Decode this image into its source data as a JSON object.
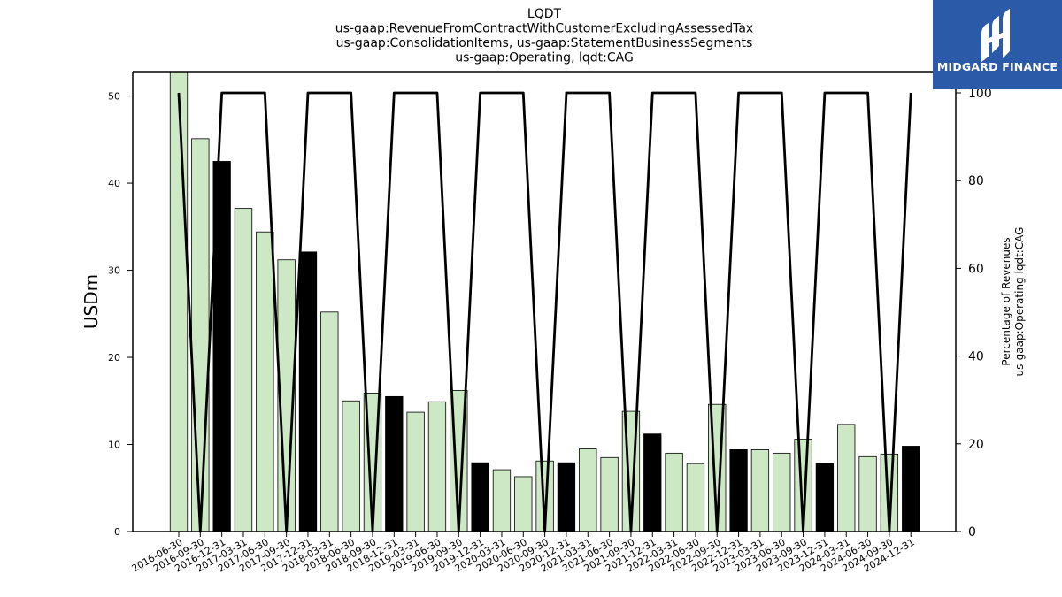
{
  "chart_data": {
    "type": "bar",
    "title_lines": [
      "LQDT",
      "us-gaap:RevenueFromContractWithCustomerExcludingAssessedTax",
      "us-gaap:ConsolidationItems, us-gaap:StatementBusinessSegments",
      "us-gaap:Operating, lqdt:CAG"
    ],
    "ylabel": "USDm",
    "ylabel_right_lines": [
      "Percentage of Revenues",
      "us-gaap:Operating lqdt:CAG"
    ],
    "ylim": [
      0,
      52.8
    ],
    "ylim_right": [
      0,
      100
    ],
    "yticks": [
      0,
      10,
      20,
      30,
      40,
      50
    ],
    "yticks_right": [
      0,
      20,
      40,
      60,
      80,
      100
    ],
    "categories": [
      "2016-06-30",
      "2016-09-30",
      "2016-12-31",
      "2017-03-31",
      "2017-06-30",
      "2017-09-30",
      "2017-12-31",
      "2018-03-31",
      "2018-06-30",
      "2018-09-30",
      "2018-12-31",
      "2019-03-31",
      "2019-06-30",
      "2019-09-30",
      "2019-12-31",
      "2020-03-31",
      "2020-06-30",
      "2020-09-30",
      "2020-12-31",
      "2021-03-31",
      "2021-06-30",
      "2021-09-30",
      "2021-12-31",
      "2022-03-31",
      "2022-06-30",
      "2022-09-30",
      "2022-12-31",
      "2023-03-31",
      "2023-06-30",
      "2023-09-30",
      "2023-12-31",
      "2024-03-31",
      "2024-06-30",
      "2024-09-30",
      "2024-12-31"
    ],
    "series": [
      {
        "kind": "bar",
        "values": [
          53.0,
          45.1,
          42.5,
          37.1,
          34.4,
          31.2,
          32.1,
          25.2,
          15.0,
          15.9,
          15.5,
          13.7,
          14.9,
          16.2,
          7.9,
          7.1,
          6.3,
          8.1,
          7.9,
          9.5,
          8.5,
          13.8,
          11.2,
          9.0,
          7.8,
          14.6,
          9.4,
          9.4,
          9.0,
          10.6,
          7.8,
          12.3,
          8.6,
          8.9,
          9.8
        ],
        "highlight": [
          false,
          false,
          true,
          false,
          false,
          false,
          true,
          false,
          false,
          false,
          true,
          false,
          false,
          false,
          true,
          false,
          false,
          false,
          true,
          false,
          false,
          false,
          true,
          false,
          false,
          false,
          true,
          false,
          false,
          false,
          true,
          false,
          false,
          false,
          true
        ]
      },
      {
        "kind": "line",
        "axis": "right",
        "values": [
          100,
          0,
          100,
          100,
          100,
          0,
          100,
          100,
          100,
          0,
          100,
          100,
          100,
          0,
          100,
          100,
          100,
          0,
          100,
          100,
          100,
          0,
          100,
          100,
          100,
          0,
          100,
          100,
          100,
          0,
          100,
          100,
          100,
          0,
          100
        ]
      }
    ],
    "colors": {
      "bar_light": "#cce8c4",
      "bar_dark": "#000000",
      "bar_edge": "#000000",
      "line": "#000000"
    },
    "grid": false
  },
  "logo": {
    "text": "MIDGARD FINANCE",
    "background": "#2b5aa8",
    "icon": "midgard-logo-icon"
  }
}
